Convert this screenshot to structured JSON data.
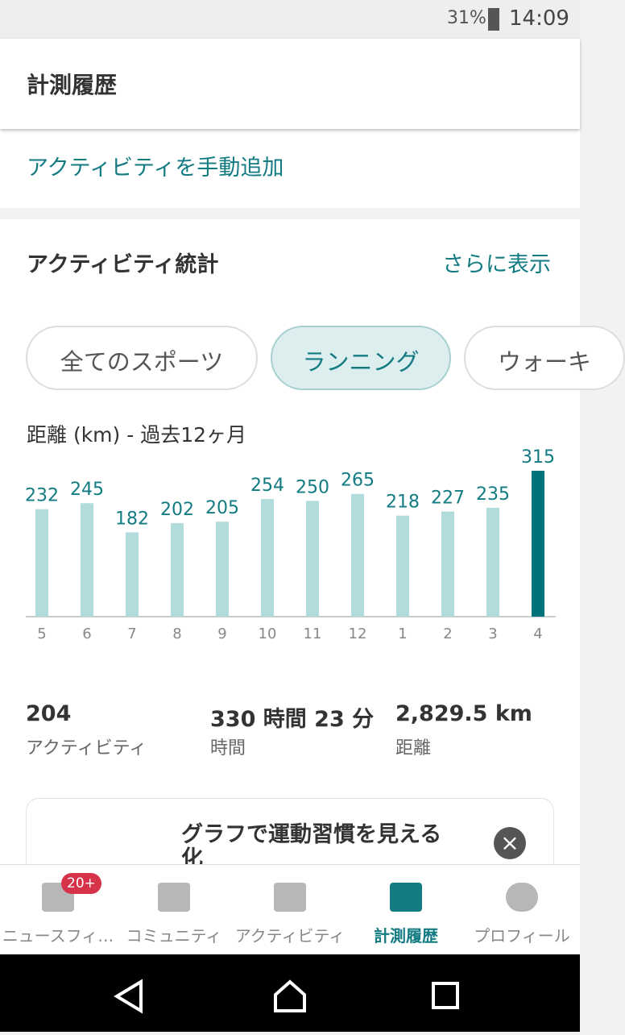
{
  "status_bar": {
    "battery": "31%",
    "time": "14:09"
  },
  "header": {
    "title": "計測履歴"
  },
  "add_activity": "アクティビティを手動追加",
  "stats": {
    "title": "アクティビティ統計",
    "more": "さらに表示"
  },
  "filters": [
    "全てのスポーツ",
    "ランニング",
    "ウォーキ"
  ],
  "chart_data": {
    "type": "bar",
    "title": "距離 (km) - 過去12ヶ月",
    "categories": [
      "5",
      "6",
      "7",
      "8",
      "9",
      "10",
      "11",
      "12",
      "1",
      "2",
      "3",
      "4"
    ],
    "values": [
      232,
      245,
      182,
      202,
      205,
      254,
      250,
      265,
      218,
      227,
      235,
      315
    ],
    "colors": [
      "#b2dbdc",
      "#b2dbdc",
      "#b2dbdc",
      "#b2dbdc",
      "#b2dbdc",
      "#b2dbdc",
      "#b2dbdc",
      "#b2dbdc",
      "#b2dbdc",
      "#b2dbdc",
      "#b2dbdc",
      "#00737a"
    ]
  },
  "summary": [
    {
      "value": "204",
      "label": "アクティビティ"
    },
    {
      "value": "330 時間 23 分",
      "label": "時間"
    },
    {
      "value": "2,829.5 km",
      "label": "距離"
    }
  ],
  "promo": {
    "title": "グラフで運動習慣を見える化"
  },
  "nav": {
    "badge": "20+",
    "items": [
      "ニュースフィ…",
      "コミュニティ",
      "アクティビティ",
      "計測履歴",
      "プロフィール"
    ]
  }
}
